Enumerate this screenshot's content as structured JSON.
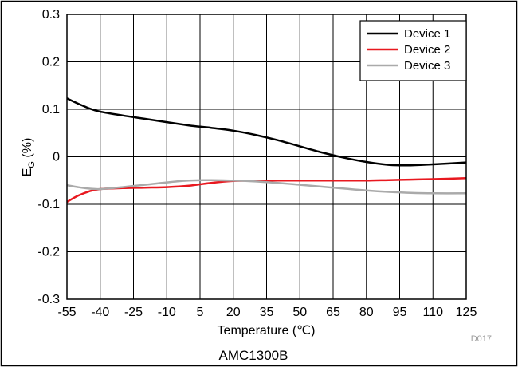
{
  "chart_data": {
    "type": "line",
    "xlabel": "Temperature (℃)",
    "ylabel_main": "E",
    "ylabel_sub": "G",
    "ylabel_unit": " (%)",
    "caption": "AMC1300B",
    "figure_id": "D017",
    "xlim": [
      -55,
      125
    ],
    "ylim": [
      -0.3,
      0.3
    ],
    "x_ticks": [
      -55,
      -40,
      -25,
      -10,
      5,
      20,
      35,
      50,
      65,
      80,
      95,
      110,
      125
    ],
    "y_ticks": [
      -0.3,
      -0.2,
      -0.1,
      0,
      0.1,
      0.2,
      0.3
    ],
    "y_tick_labels": [
      "-0.3",
      "-0.2",
      "-0.1",
      "0",
      "0.1",
      "0.2",
      "0.3"
    ],
    "grid": true,
    "legend_position": "top-right",
    "series": [
      {
        "name": "Device 1",
        "color": "#000000",
        "x": [
          -55,
          -50,
          -45,
          -40,
          -30,
          -20,
          -10,
          0,
          10,
          20,
          30,
          40,
          50,
          60,
          70,
          80,
          90,
          95,
          100,
          110,
          125
        ],
        "y": [
          0.123,
          0.112,
          0.102,
          0.095,
          0.087,
          0.08,
          0.073,
          0.066,
          0.061,
          0.055,
          0.046,
          0.035,
          0.022,
          0.009,
          -0.002,
          -0.011,
          -0.017,
          -0.018,
          -0.018,
          -0.016,
          -0.012
        ]
      },
      {
        "name": "Device 2",
        "color": "#e8181f",
        "x": [
          -55,
          -50,
          -45,
          -40,
          -30,
          -20,
          -10,
          0,
          10,
          20,
          30,
          40,
          50,
          60,
          70,
          80,
          90,
          100,
          110,
          125
        ],
        "y": [
          -0.095,
          -0.082,
          -0.073,
          -0.068,
          -0.066,
          -0.065,
          -0.064,
          -0.061,
          -0.055,
          -0.051,
          -0.05,
          -0.05,
          -0.05,
          -0.05,
          -0.05,
          -0.05,
          -0.049,
          -0.048,
          -0.047,
          -0.045
        ]
      },
      {
        "name": "Device 3",
        "color": "#aaaaaa",
        "x": [
          -55,
          -50,
          -45,
          -40,
          -30,
          -20,
          -10,
          0,
          10,
          20,
          30,
          40,
          50,
          60,
          70,
          80,
          90,
          100,
          110,
          125
        ],
        "y": [
          -0.06,
          -0.064,
          -0.067,
          -0.068,
          -0.064,
          -0.059,
          -0.054,
          -0.05,
          -0.049,
          -0.05,
          -0.052,
          -0.055,
          -0.059,
          -0.063,
          -0.067,
          -0.071,
          -0.074,
          -0.076,
          -0.077,
          -0.077
        ]
      }
    ]
  }
}
